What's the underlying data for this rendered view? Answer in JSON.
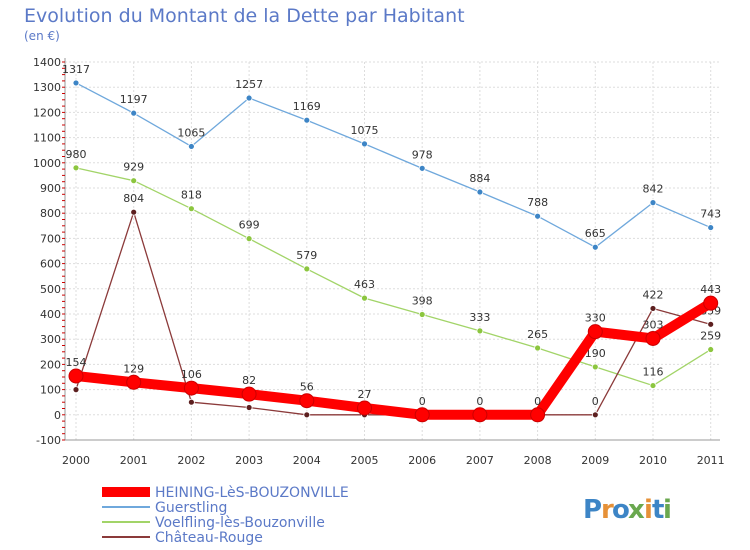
{
  "chart_data": {
    "type": "line",
    "title": "Evolution du Montant de la Dette par Habitant",
    "subtitle": "(en €)",
    "x": [
      "2000",
      "2001",
      "2002",
      "2003",
      "2004",
      "2005",
      "2006",
      "2007",
      "2008",
      "2009",
      "2010",
      "2011"
    ],
    "ylim": [
      -100,
      1400
    ],
    "yticks": [
      -100,
      0,
      100,
      200,
      300,
      400,
      500,
      600,
      700,
      800,
      900,
      1000,
      1100,
      1200,
      1300,
      1400
    ],
    "grid": true,
    "legend_position": "bottom-left",
    "series": [
      {
        "name": "HEINING-LèS-BOUZONVILLE",
        "color": "#ff0000",
        "values": [
          154,
          129,
          106,
          82,
          56,
          27,
          0,
          0,
          0,
          330,
          303,
          443
        ],
        "labels": [
          "154",
          "129",
          "106",
          "82",
          "56",
          "27",
          "0",
          "0",
          "0",
          "330",
          "303",
          "443"
        ]
      },
      {
        "name": "Guerstling",
        "color": "#6fa8dc",
        "marker": "#3d85c6",
        "values": [
          1317,
          1197,
          1065,
          1257,
          1169,
          1075,
          978,
          884,
          788,
          665,
          842,
          743
        ],
        "labels": [
          "1317",
          "1197",
          "1065",
          "1257",
          "1169",
          "1075",
          "978",
          "884",
          "788",
          "665",
          "842",
          "743"
        ]
      },
      {
        "name": "Voelfling-lès-Bouzonville",
        "color": "#a2d468",
        "marker": "#8cc63f",
        "values": [
          980,
          929,
          818,
          699,
          579,
          463,
          398,
          333,
          265,
          190,
          116,
          259
        ],
        "labels": [
          "980",
          "929",
          "818",
          "699",
          "579",
          "463",
          "398",
          "333",
          "265",
          "190",
          "116",
          "259"
        ]
      },
      {
        "name": "Château-Rouge",
        "color": "#8b3a3a",
        "marker": "#5c1f1f",
        "values": [
          100,
          804,
          50,
          29,
          0,
          0,
          0,
          0,
          0,
          0,
          422,
          359
        ],
        "labels": [
          "",
          "804",
          "",
          "",
          "",
          "",
          "",
          "",
          "",
          "0",
          "422",
          "359"
        ]
      }
    ]
  },
  "logo": {
    "text": "Proxiti",
    "letters": [
      "P",
      "r",
      "o",
      "x",
      "i",
      "t",
      "i"
    ],
    "colors": [
      "#3d85c6",
      "#e69138",
      "#3d85c6",
      "#6aa84f",
      "#e69138",
      "#3d85c6",
      "#6aa84f"
    ]
  }
}
